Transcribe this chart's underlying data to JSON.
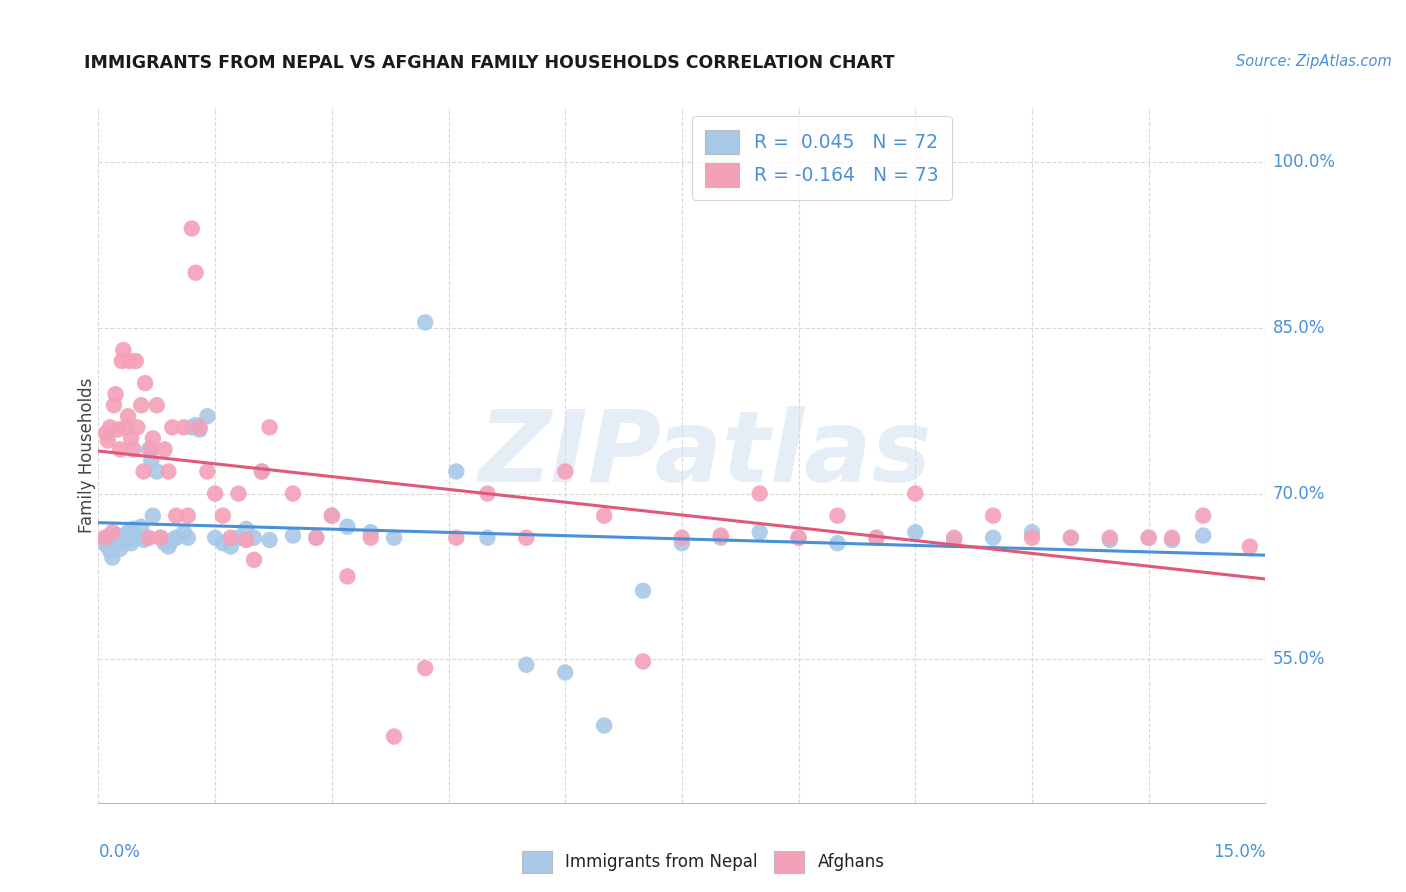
{
  "title": "IMMIGRANTS FROM NEPAL VS AFGHAN FAMILY HOUSEHOLDS CORRELATION CHART",
  "source": "Source: ZipAtlas.com",
  "ylabel": "Family Households",
  "ytick_vals": [
    0.55,
    0.7,
    0.85,
    1.0
  ],
  "ytick_labels": [
    "55.0%",
    "70.0%",
    "85.0%",
    "100.0%"
  ],
  "xlim": [
    0.0,
    0.15
  ],
  "ylim": [
    0.42,
    1.05
  ],
  "nepal_color": "#a8c8e8",
  "afghan_color": "#f4a0b8",
  "nepal_line_color": "#4a90d9",
  "afghan_line_color": "#e05878",
  "watermark": "ZIPatlas",
  "background_color": "#ffffff",
  "grid_color": "#d8d8d8",
  "nepal_x": [
    0.0008,
    0.001,
    0.0012,
    0.0015,
    0.0018,
    0.002,
    0.0022,
    0.0025,
    0.0028,
    0.003,
    0.0032,
    0.0035,
    0.0038,
    0.004,
    0.0042,
    0.0045,
    0.0048,
    0.005,
    0.0055,
    0.0058,
    0.006,
    0.0065,
    0.0068,
    0.007,
    0.0075,
    0.008,
    0.0085,
    0.009,
    0.0095,
    0.01,
    0.011,
    0.0115,
    0.012,
    0.0125,
    0.013,
    0.014,
    0.015,
    0.016,
    0.017,
    0.018,
    0.019,
    0.02,
    0.021,
    0.022,
    0.025,
    0.028,
    0.03,
    0.032,
    0.035,
    0.038,
    0.042,
    0.046,
    0.05,
    0.055,
    0.06,
    0.065,
    0.07,
    0.075,
    0.08,
    0.085,
    0.09,
    0.095,
    0.1,
    0.105,
    0.11,
    0.115,
    0.12,
    0.125,
    0.13,
    0.135,
    0.138,
    0.142
  ],
  "nepal_y": [
    0.655,
    0.66,
    0.652,
    0.648,
    0.642,
    0.66,
    0.656,
    0.662,
    0.65,
    0.655,
    0.66,
    0.658,
    0.665,
    0.66,
    0.655,
    0.668,
    0.66,
    0.662,
    0.67,
    0.658,
    0.66,
    0.74,
    0.73,
    0.68,
    0.72,
    0.66,
    0.655,
    0.652,
    0.658,
    0.66,
    0.665,
    0.66,
    0.76,
    0.762,
    0.758,
    0.77,
    0.66,
    0.655,
    0.652,
    0.66,
    0.668,
    0.66,
    0.72,
    0.658,
    0.662,
    0.66,
    0.68,
    0.67,
    0.665,
    0.66,
    0.855,
    0.72,
    0.66,
    0.545,
    0.538,
    0.49,
    0.612,
    0.655,
    0.66,
    0.665,
    0.66,
    0.655,
    0.66,
    0.665,
    0.658,
    0.66,
    0.665,
    0.66,
    0.658,
    0.66,
    0.658,
    0.662
  ],
  "afghan_x": [
    0.0008,
    0.001,
    0.0012,
    0.0015,
    0.0018,
    0.002,
    0.0022,
    0.0025,
    0.0028,
    0.003,
    0.0032,
    0.0035,
    0.0038,
    0.004,
    0.0042,
    0.0045,
    0.0048,
    0.005,
    0.0055,
    0.0058,
    0.006,
    0.0065,
    0.0068,
    0.007,
    0.0075,
    0.008,
    0.0085,
    0.009,
    0.0095,
    0.01,
    0.011,
    0.0115,
    0.012,
    0.0125,
    0.013,
    0.014,
    0.015,
    0.016,
    0.017,
    0.018,
    0.019,
    0.02,
    0.021,
    0.022,
    0.025,
    0.028,
    0.03,
    0.032,
    0.035,
    0.038,
    0.042,
    0.046,
    0.05,
    0.055,
    0.06,
    0.065,
    0.07,
    0.075,
    0.08,
    0.085,
    0.09,
    0.095,
    0.1,
    0.105,
    0.11,
    0.115,
    0.12,
    0.125,
    0.13,
    0.135,
    0.138,
    0.142,
    0.148
  ],
  "afghan_y": [
    0.66,
    0.755,
    0.748,
    0.76,
    0.665,
    0.78,
    0.79,
    0.758,
    0.74,
    0.82,
    0.83,
    0.76,
    0.77,
    0.82,
    0.75,
    0.74,
    0.82,
    0.76,
    0.78,
    0.72,
    0.8,
    0.66,
    0.74,
    0.75,
    0.78,
    0.66,
    0.74,
    0.72,
    0.76,
    0.68,
    0.76,
    0.68,
    0.94,
    0.9,
    0.76,
    0.72,
    0.7,
    0.68,
    0.66,
    0.7,
    0.658,
    0.64,
    0.72,
    0.76,
    0.7,
    0.66,
    0.68,
    0.625,
    0.66,
    0.48,
    0.542,
    0.66,
    0.7,
    0.66,
    0.72,
    0.68,
    0.548,
    0.66,
    0.662,
    0.7,
    0.66,
    0.68,
    0.66,
    0.7,
    0.66,
    0.68,
    0.66,
    0.66,
    0.66,
    0.66,
    0.66,
    0.68,
    0.652
  ]
}
